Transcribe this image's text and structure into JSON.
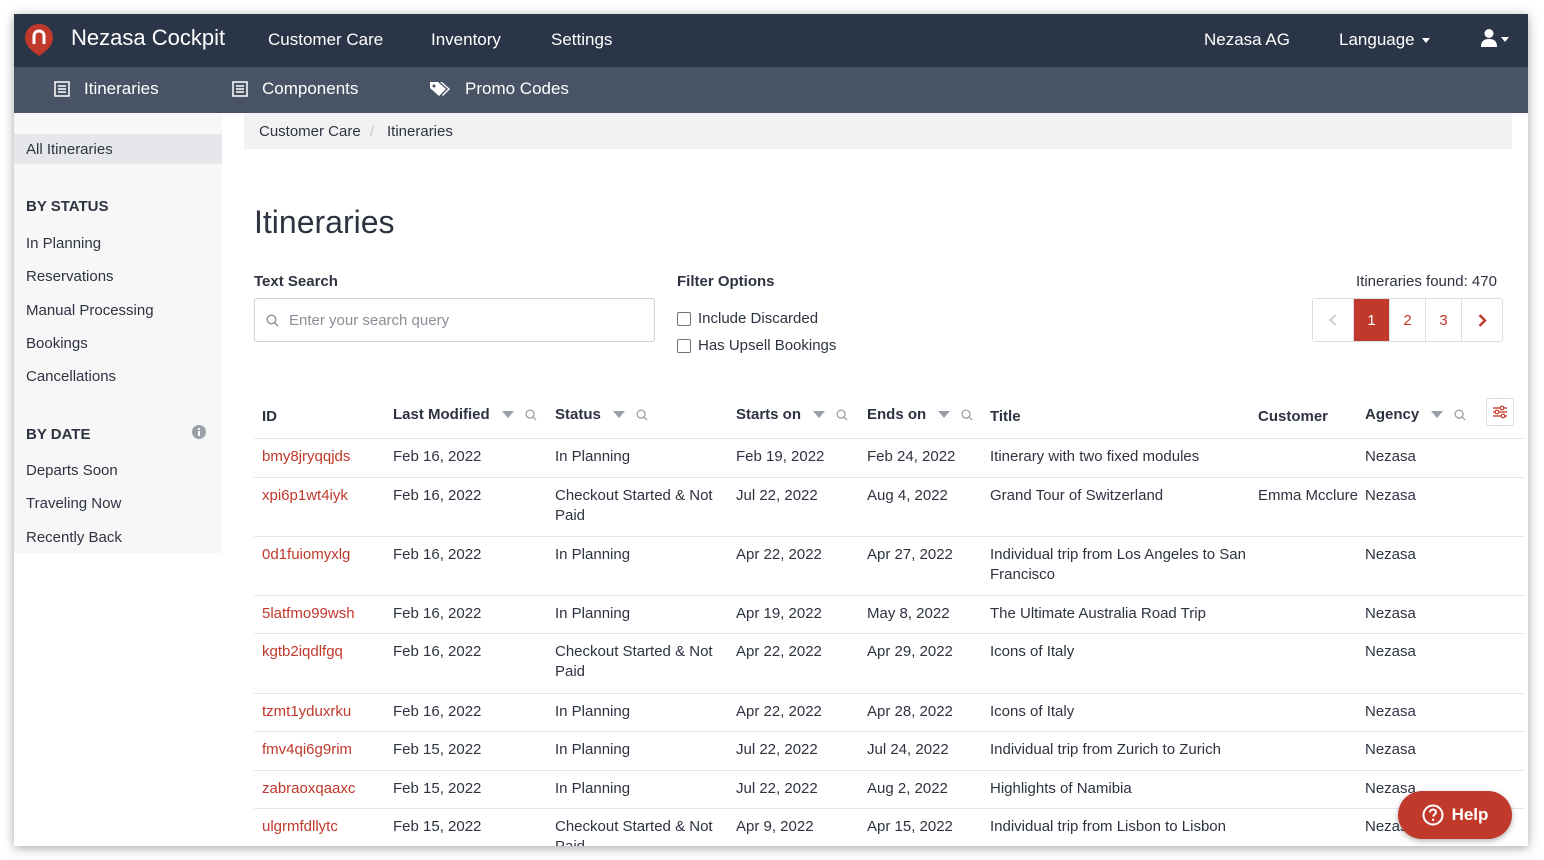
{
  "topbar": {
    "brand": "Nezasa Cockpit",
    "nav": [
      "Customer Care",
      "Inventory",
      "Settings"
    ],
    "company": "Nezasa AG",
    "language": "Language"
  },
  "subbar": {
    "itineraries": "Itineraries",
    "components": "Components",
    "promo_codes": "Promo Codes"
  },
  "sidebar": {
    "all": "All Itineraries",
    "by_status": "BY STATUS",
    "status_items": [
      "In Planning",
      "Reservations",
      "Manual Processing",
      "Bookings",
      "Cancellations"
    ],
    "by_date": "BY DATE",
    "date_items": [
      "Departs Soon",
      "Traveling Now",
      "Recently Back"
    ]
  },
  "breadcrumb": [
    "Customer Care",
    "Itineraries"
  ],
  "breadcrumb_sep": "/",
  "page_title": "Itineraries",
  "search": {
    "label": "Text Search",
    "placeholder": "Enter your search query"
  },
  "filters": {
    "label": "Filter Options",
    "include_discarded": "Include Discarded",
    "has_upsell": "Has Upsell Bookings"
  },
  "found": "Itineraries found: 470",
  "pagination": {
    "pages": [
      "1",
      "2",
      "3"
    ],
    "current": "1"
  },
  "table": {
    "headers": {
      "id": "ID",
      "last_modified": "Last Modified",
      "status": "Status",
      "starts_on": "Starts on",
      "ends_on": "Ends on",
      "title": "Title",
      "customer": "Customer",
      "agency": "Agency"
    },
    "rows": [
      {
        "id": "bmy8jryqqjds",
        "modified": "Feb 16, 2022",
        "status": "In Planning",
        "starts": "Feb 19, 2022",
        "ends": "Feb 24, 2022",
        "title": "Itinerary with two fixed modules",
        "customer": "",
        "agency": "Nezasa"
      },
      {
        "id": "xpi6p1wt4iyk",
        "modified": "Feb 16, 2022",
        "status": "Checkout Started & Not Paid",
        "starts": "Jul 22, 2022",
        "ends": "Aug 4, 2022",
        "title": "Grand Tour of Switzerland",
        "customer": "Emma Mcclure",
        "agency": "Nezasa"
      },
      {
        "id": "0d1fuiomyxlg",
        "modified": "Feb 16, 2022",
        "status": "In Planning",
        "starts": "Apr 22, 2022",
        "ends": "Apr 27, 2022",
        "title": "Individual trip from Los Angeles to San Francisco",
        "customer": "",
        "agency": "Nezasa"
      },
      {
        "id": "5latfmo99wsh",
        "modified": "Feb 16, 2022",
        "status": "In Planning",
        "starts": "Apr 19, 2022",
        "ends": "May 8, 2022",
        "title": "The Ultimate Australia Road Trip",
        "customer": "",
        "agency": "Nezasa"
      },
      {
        "id": "kgtb2iqdlfgq",
        "modified": "Feb 16, 2022",
        "status": "Checkout Started & Not Paid",
        "starts": "Apr 22, 2022",
        "ends": "Apr 29, 2022",
        "title": "Icons of Italy",
        "customer": "",
        "agency": "Nezasa"
      },
      {
        "id": "tzmt1yduxrku",
        "modified": "Feb 16, 2022",
        "status": "In Planning",
        "starts": "Apr 22, 2022",
        "ends": "Apr 28, 2022",
        "title": "Icons of Italy",
        "customer": "",
        "agency": "Nezasa"
      },
      {
        "id": "fmv4qi6g9rim",
        "modified": "Feb 15, 2022",
        "status": "In Planning",
        "starts": "Jul 22, 2022",
        "ends": "Jul 24, 2022",
        "title": "Individual trip from Zurich to Zurich",
        "customer": "",
        "agency": "Nezasa"
      },
      {
        "id": "zabraoxqaaxc",
        "modified": "Feb 15, 2022",
        "status": "In Planning",
        "starts": "Jul 22, 2022",
        "ends": "Aug 2, 2022",
        "title": "Highlights of Namibia",
        "customer": "",
        "agency": "Nezasa"
      },
      {
        "id": "ulgrmfdllytc",
        "modified": "Feb 15, 2022",
        "status": "Checkout Started & Not Paid",
        "starts": "Apr 9, 2022",
        "ends": "Apr 15, 2022",
        "title": "Individual trip from Lisbon to Lisbon",
        "customer": "",
        "agency": "Nezasa"
      }
    ]
  },
  "help": "Help",
  "colors": {
    "topbar": "#2b3548",
    "subbar": "#485466",
    "accent": "#c0392b"
  }
}
